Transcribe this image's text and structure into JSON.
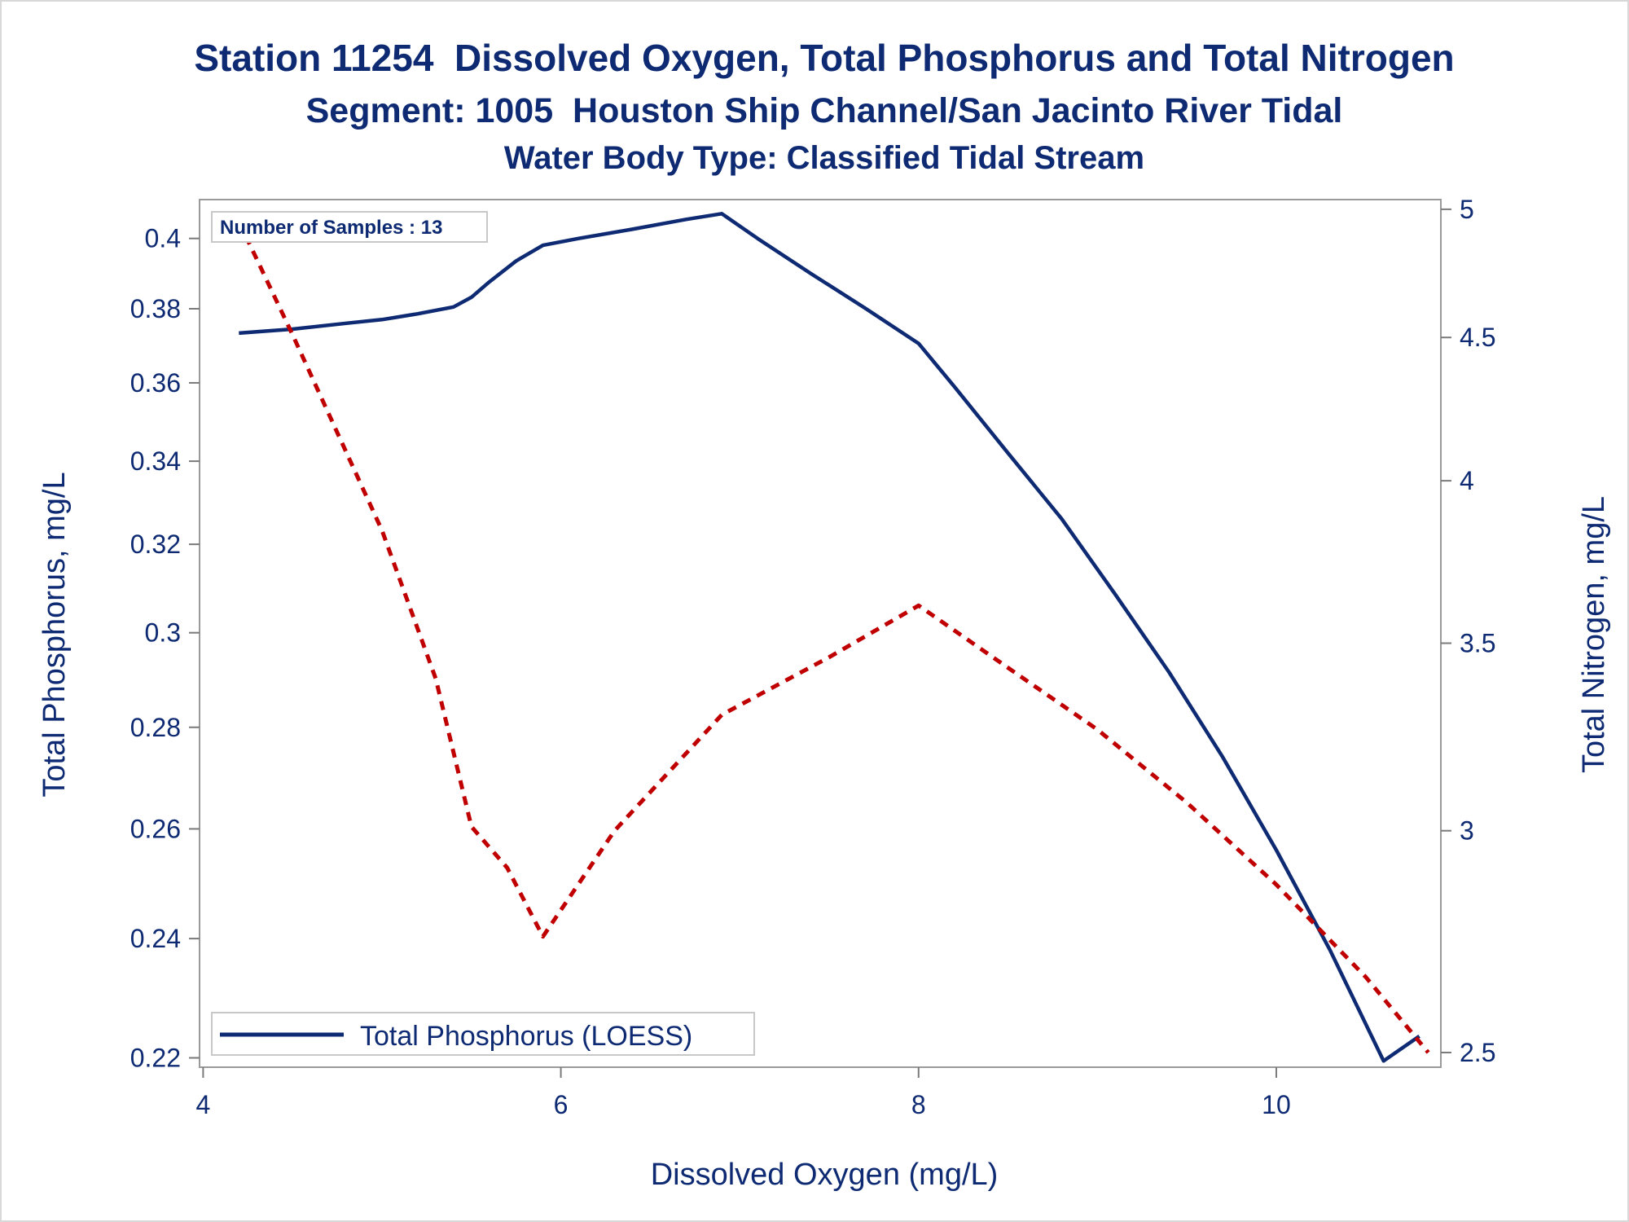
{
  "chart_data": {
    "type": "line",
    "title": "Station 11254  Dissolved Oxygen, Total Phosphorus and Total Nitrogen",
    "subtitle": "Segment: 1005  Houston Ship Channel/San Jacinto River Tidal",
    "subtitle2": "Water Body Type: Classified Tidal Stream",
    "xlabel": "Dissolved Oxygen (mg/L)",
    "ylabel_left": "Total Phosphorus, mg/L",
    "ylabel_right": "Total Nitrogen, mg/L",
    "x_ticks": [
      "4",
      "6",
      "8",
      "10"
    ],
    "x_tick_values": [
      4,
      6,
      8,
      10
    ],
    "xlim": [
      3.98,
      10.92
    ],
    "y_left_ticks": [
      "0.22",
      "0.24",
      "0.26",
      "0.28",
      "0.3",
      "0.32",
      "0.34",
      "0.36",
      "0.38",
      "0.4"
    ],
    "y_left_tick_values": [
      0.22,
      0.24,
      0.26,
      0.28,
      0.3,
      0.32,
      0.34,
      0.36,
      0.38,
      0.4
    ],
    "y_left_scale": "log",
    "ylim_left": [
      0.2185,
      0.4115
    ],
    "y_right_ticks": [
      "2.5",
      "3",
      "3.5",
      "4",
      "4.5",
      "5"
    ],
    "y_right_tick_values": [
      2.5,
      3,
      3.5,
      4,
      4.5,
      5
    ],
    "y_right_scale": "log",
    "ylim_right": [
      2.47,
      5.04
    ],
    "annotation": "Number of Samples : 13",
    "legend_position": "bottom-left",
    "series": [
      {
        "name": "Total Phosphorus (LOESS)",
        "axis": "left",
        "style": "solid",
        "color": "#0d2a73",
        "points": [
          [
            4.2,
            0.3733
          ],
          [
            4.5,
            0.3744
          ],
          [
            4.8,
            0.376
          ],
          [
            5.0,
            0.377
          ],
          [
            5.2,
            0.3786
          ],
          [
            5.4,
            0.3805
          ],
          [
            5.5,
            0.3832
          ],
          [
            5.6,
            0.3875
          ],
          [
            5.75,
            0.3935
          ],
          [
            5.9,
            0.398
          ],
          [
            6.1,
            0.4
          ],
          [
            6.4,
            0.4027
          ],
          [
            6.7,
            0.4056
          ],
          [
            6.9,
            0.4073
          ],
          [
            7.1,
            0.4
          ],
          [
            7.4,
            0.3898
          ],
          [
            7.7,
            0.3802
          ],
          [
            8.0,
            0.3705
          ],
          [
            8.2,
            0.359
          ],
          [
            8.5,
            0.342
          ],
          [
            8.8,
            0.326
          ],
          [
            9.1,
            0.3085
          ],
          [
            9.4,
            0.2915
          ],
          [
            9.7,
            0.274
          ],
          [
            10.0,
            0.256
          ],
          [
            10.3,
            0.238
          ],
          [
            10.6,
            0.2195
          ],
          [
            10.8,
            0.2235
          ]
        ]
      },
      {
        "axis": "right",
        "style": "dashed",
        "color": "#c00000",
        "points": [
          [
            4.2,
            4.95
          ],
          [
            4.5,
            4.51
          ],
          [
            5.0,
            3.84
          ],
          [
            5.3,
            3.4
          ],
          [
            5.5,
            3.01
          ],
          [
            5.7,
            2.91
          ],
          [
            5.9,
            2.75
          ],
          [
            6.3,
            3.0
          ],
          [
            6.9,
            3.3
          ],
          [
            7.5,
            3.46
          ],
          [
            8.0,
            3.61
          ],
          [
            8.5,
            3.43
          ],
          [
            9.0,
            3.26
          ],
          [
            9.5,
            3.07
          ],
          [
            10.0,
            2.87
          ],
          [
            10.5,
            2.66
          ],
          [
            10.85,
            2.5
          ]
        ]
      }
    ]
  }
}
